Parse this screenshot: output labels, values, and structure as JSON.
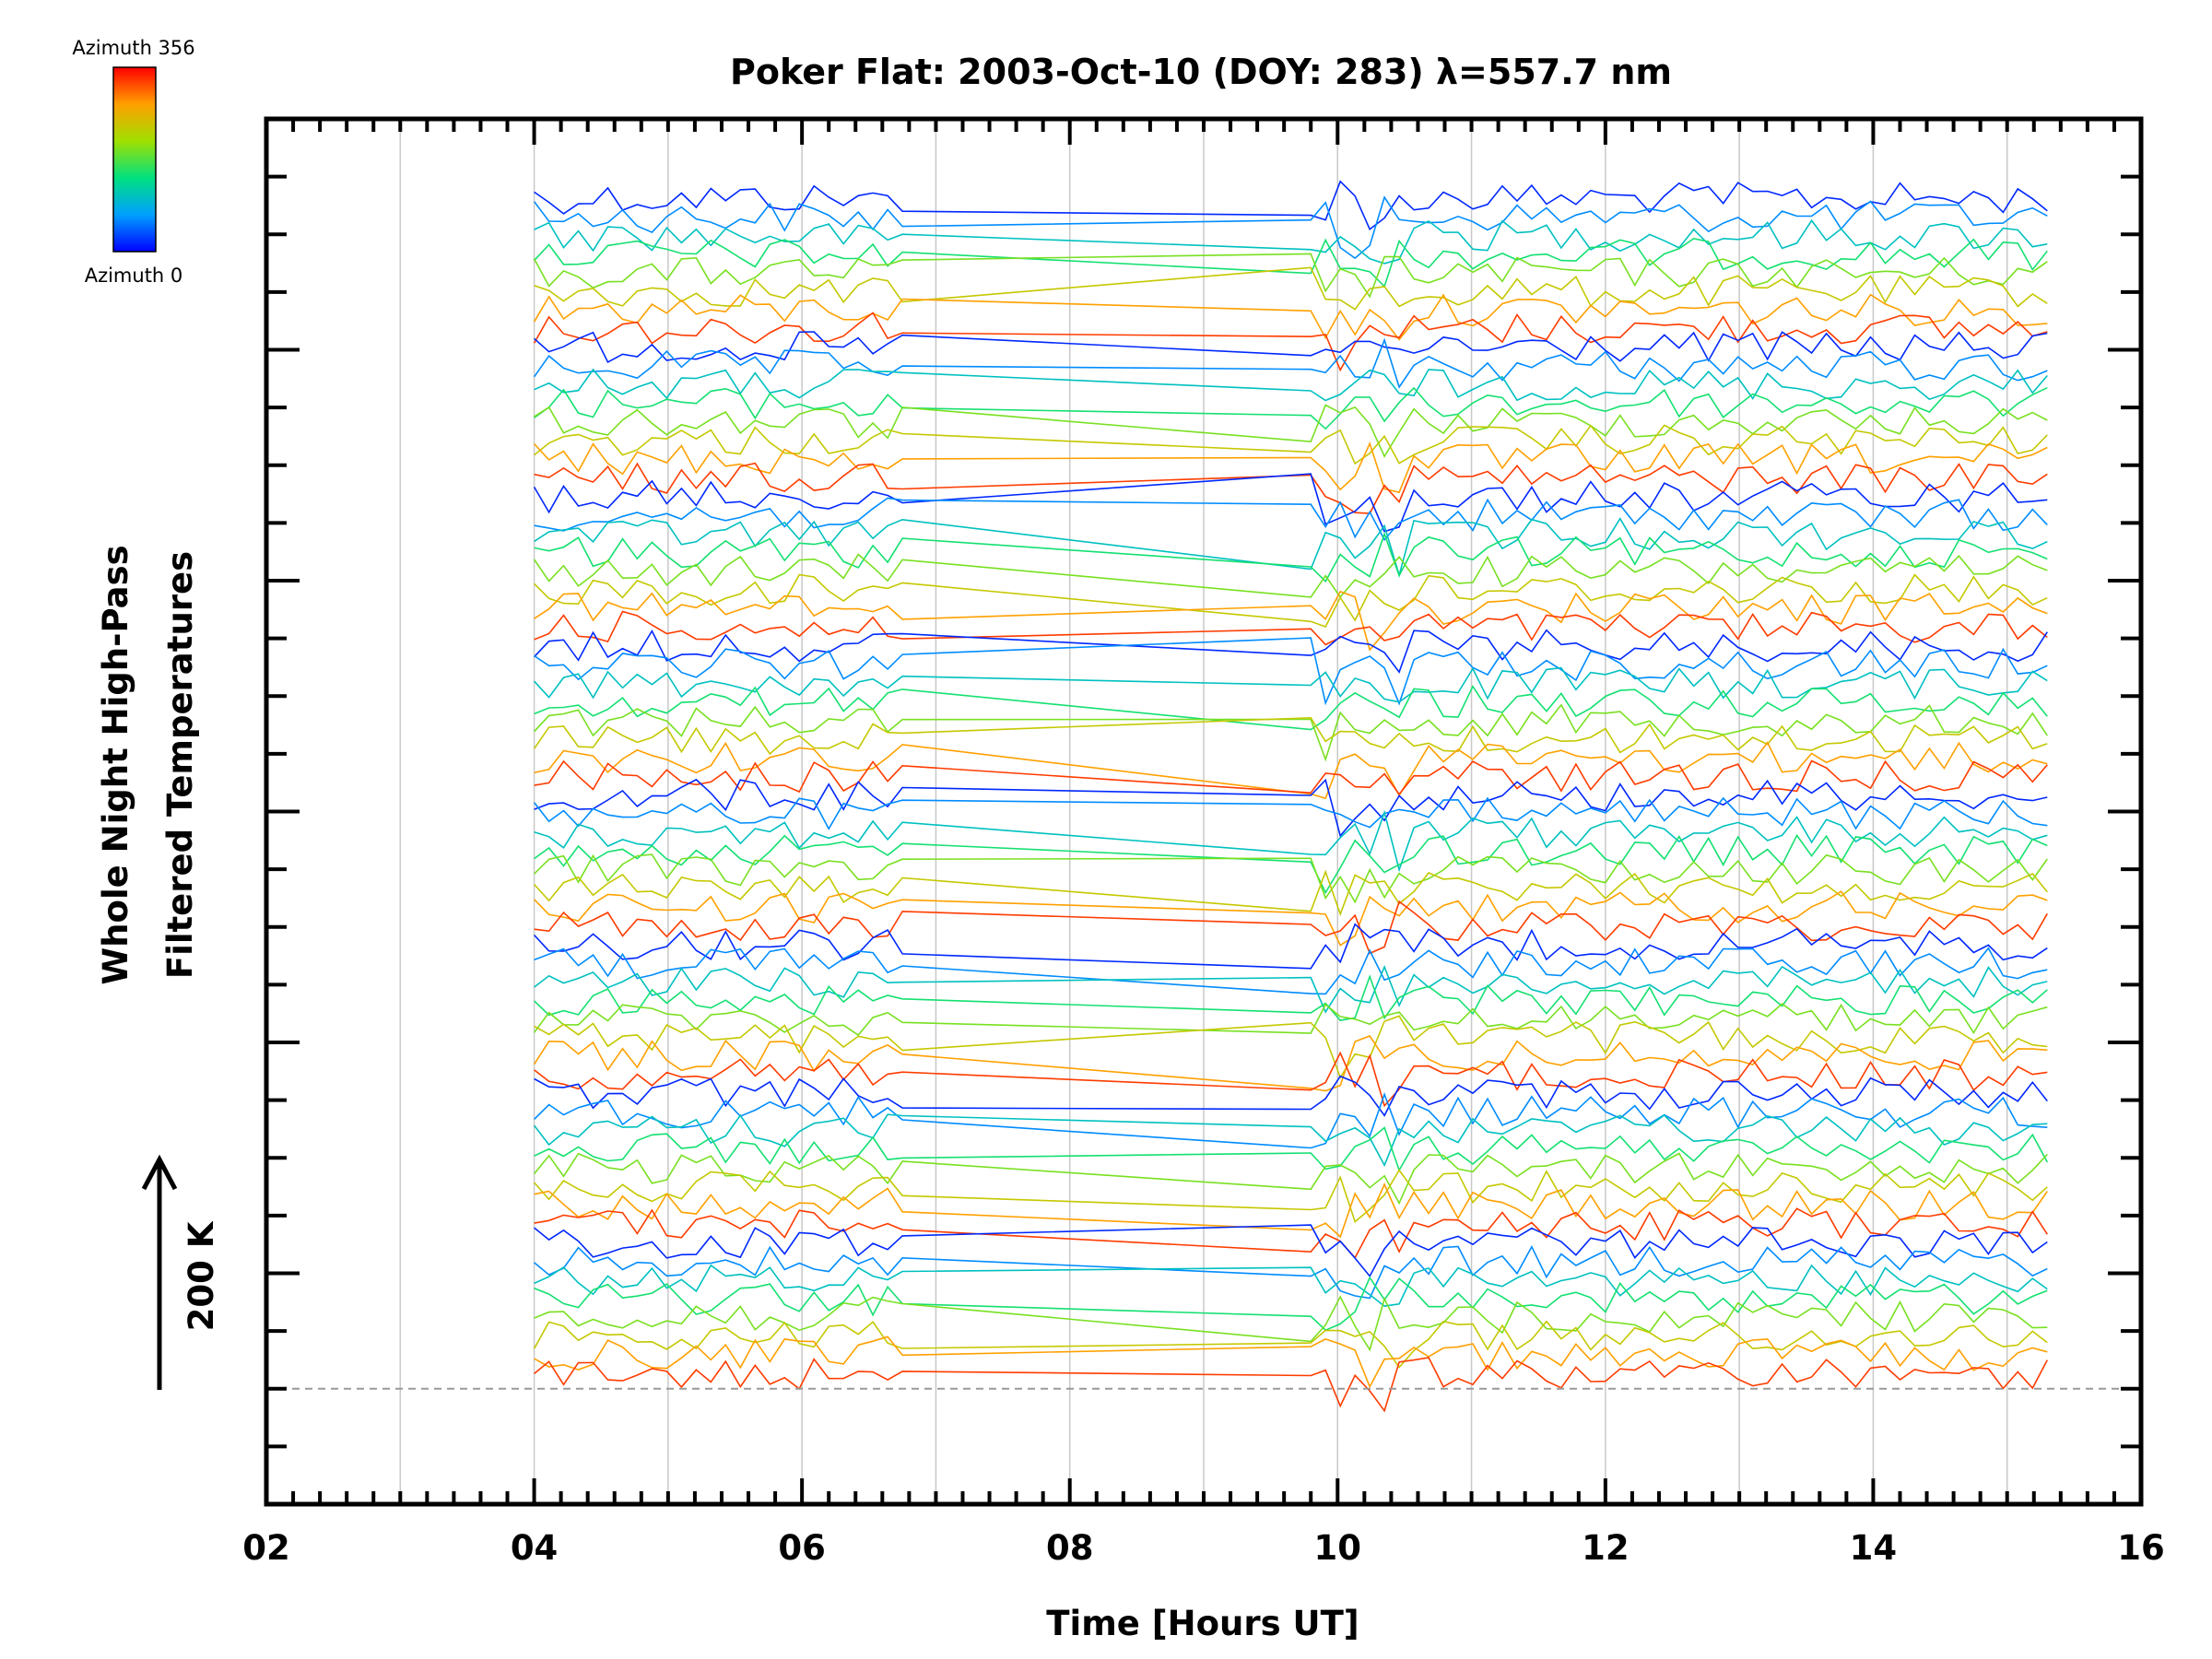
{
  "chart_data": {
    "type": "line",
    "title": "Poker Flat: 2003-Oct-10 (DOY: 283) λ=557.7 nm",
    "xlabel": "Time [Hours UT]",
    "ylabel_line1": "Whole Night High-Pass",
    "ylabel_line2": "Filtered Temperatures",
    "xlim": [
      2,
      16
    ],
    "xtick_labels": [
      "02",
      "04",
      "06",
      "08",
      "10",
      "12",
      "14",
      "16"
    ],
    "x_minor_step": 0.2,
    "y_ticks_count": 23,
    "grid": "vertical",
    "scale_label": "200 K",
    "colorbar": {
      "top_label": "Azimuth 356",
      "bottom_label": "Azimuth 0",
      "min": 0,
      "max": 356,
      "colormap": "rainbow"
    },
    "data_x_range": [
      4,
      15.4
    ],
    "data_gap": [
      6.75,
      9.8
    ],
    "note": "Stacked traces, one per azimuth, colored by azimuth; data span 04–15.4 UT with a gap between ~06.7 and ~09.8 UT",
    "colors": {
      "axis": "#000000",
      "grid": "#c8c8c8",
      "reference_line": "#9a9a9a",
      "background": "#ffffff"
    }
  }
}
